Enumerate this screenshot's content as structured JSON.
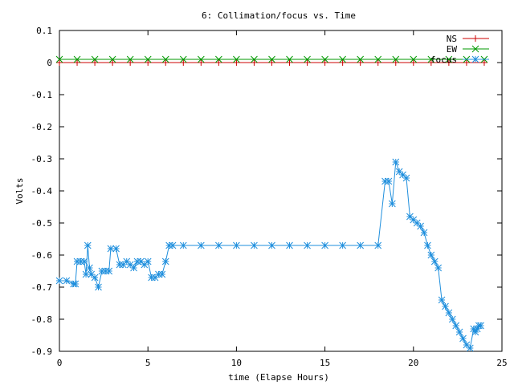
{
  "chart_data": {
    "type": "line",
    "title": "6: Collimation/focus vs. Time",
    "xlabel": "time (Elapse Hours)",
    "ylabel": "Volts",
    "xlim": [
      0,
      25
    ],
    "ylim": [
      -0.9,
      0.1
    ],
    "xticks": [
      "0",
      "5",
      "10",
      "15",
      "20",
      "25"
    ],
    "yticks": [
      "0.1",
      "0",
      "-0.1",
      "-0.2",
      "-0.3",
      "-0.4",
      "-0.5",
      "-0.6",
      "-0.7",
      "-0.8",
      "-0.9"
    ],
    "legend_position": "top-right",
    "grid": false,
    "series": [
      {
        "name": "NS",
        "color": "#cc0000",
        "marker": "plus",
        "x": [
          0,
          1,
          2,
          3,
          4,
          5,
          6,
          7,
          8,
          9,
          10,
          11,
          12,
          13,
          14,
          15,
          16,
          17,
          18,
          19,
          20,
          21,
          22,
          23,
          24
        ],
        "y": [
          0.0,
          0.0,
          0.0,
          0.0,
          0.0,
          0.0,
          0.0,
          0.0,
          0.0,
          0.0,
          0.0,
          0.0,
          0.0,
          0.0,
          0.0,
          0.0,
          0.0,
          0.0,
          0.0,
          0.0,
          0.0,
          0.0,
          0.0,
          0.0,
          0.0
        ]
      },
      {
        "name": "EW",
        "color": "#009900",
        "marker": "cross",
        "x": [
          0,
          1,
          2,
          3,
          4,
          5,
          6,
          7,
          8,
          9,
          10,
          11,
          12,
          13,
          14,
          15,
          16,
          17,
          18,
          19,
          20,
          21,
          22,
          23,
          24
        ],
        "y": [
          0.01,
          0.01,
          0.01,
          0.01,
          0.01,
          0.01,
          0.01,
          0.01,
          0.01,
          0.01,
          0.01,
          0.01,
          0.01,
          0.01,
          0.01,
          0.01,
          0.01,
          0.01,
          0.01,
          0.01,
          0.01,
          0.01,
          0.01,
          0.01,
          0.01
        ]
      },
      {
        "name": "focus",
        "color": "#1f8fdd",
        "marker": "star",
        "x": [
          0,
          0.4,
          0.8,
          0.9,
          1.0,
          1.2,
          1.4,
          1.5,
          1.6,
          1.7,
          1.8,
          2.0,
          2.2,
          2.4,
          2.6,
          2.8,
          2.9,
          3.2,
          3.4,
          3.6,
          3.8,
          4.0,
          4.2,
          4.4,
          4.6,
          4.8,
          5.0,
          5.2,
          5.4,
          5.6,
          5.8,
          6.0,
          6.2,
          6.4,
          7,
          8,
          9,
          10,
          11,
          12,
          13,
          14,
          15,
          16,
          17,
          18,
          18.4,
          18.6,
          18.8,
          19.0,
          19.2,
          19.4,
          19.6,
          19.8,
          20.0,
          20.2,
          20.4,
          20.6,
          20.8,
          21.0,
          21.2,
          21.4,
          21.6,
          21.8,
          22.0,
          22.2,
          22.4,
          22.6,
          22.8,
          23.0,
          23.2,
          23.4,
          23.5,
          23.6,
          23.7,
          23.8
        ],
        "y": [
          -0.68,
          -0.68,
          -0.69,
          -0.69,
          -0.62,
          -0.62,
          -0.62,
          -0.66,
          -0.57,
          -0.64,
          -0.66,
          -0.67,
          -0.7,
          -0.65,
          -0.65,
          -0.65,
          -0.58,
          -0.58,
          -0.63,
          -0.63,
          -0.62,
          -0.63,
          -0.64,
          -0.62,
          -0.62,
          -0.63,
          -0.62,
          -0.67,
          -0.67,
          -0.66,
          -0.66,
          -0.62,
          -0.57,
          -0.57,
          -0.57,
          -0.57,
          -0.57,
          -0.57,
          -0.57,
          -0.57,
          -0.57,
          -0.57,
          -0.57,
          -0.57,
          -0.57,
          -0.57,
          -0.37,
          -0.37,
          -0.44,
          -0.31,
          -0.34,
          -0.35,
          -0.36,
          -0.48,
          -0.49,
          -0.5,
          -0.51,
          -0.53,
          -0.57,
          -0.6,
          -0.62,
          -0.64,
          -0.74,
          -0.76,
          -0.78,
          -0.8,
          -0.82,
          -0.84,
          -0.86,
          -0.88,
          -0.89,
          -0.83,
          -0.84,
          -0.83,
          -0.82,
          -0.82
        ]
      }
    ]
  }
}
